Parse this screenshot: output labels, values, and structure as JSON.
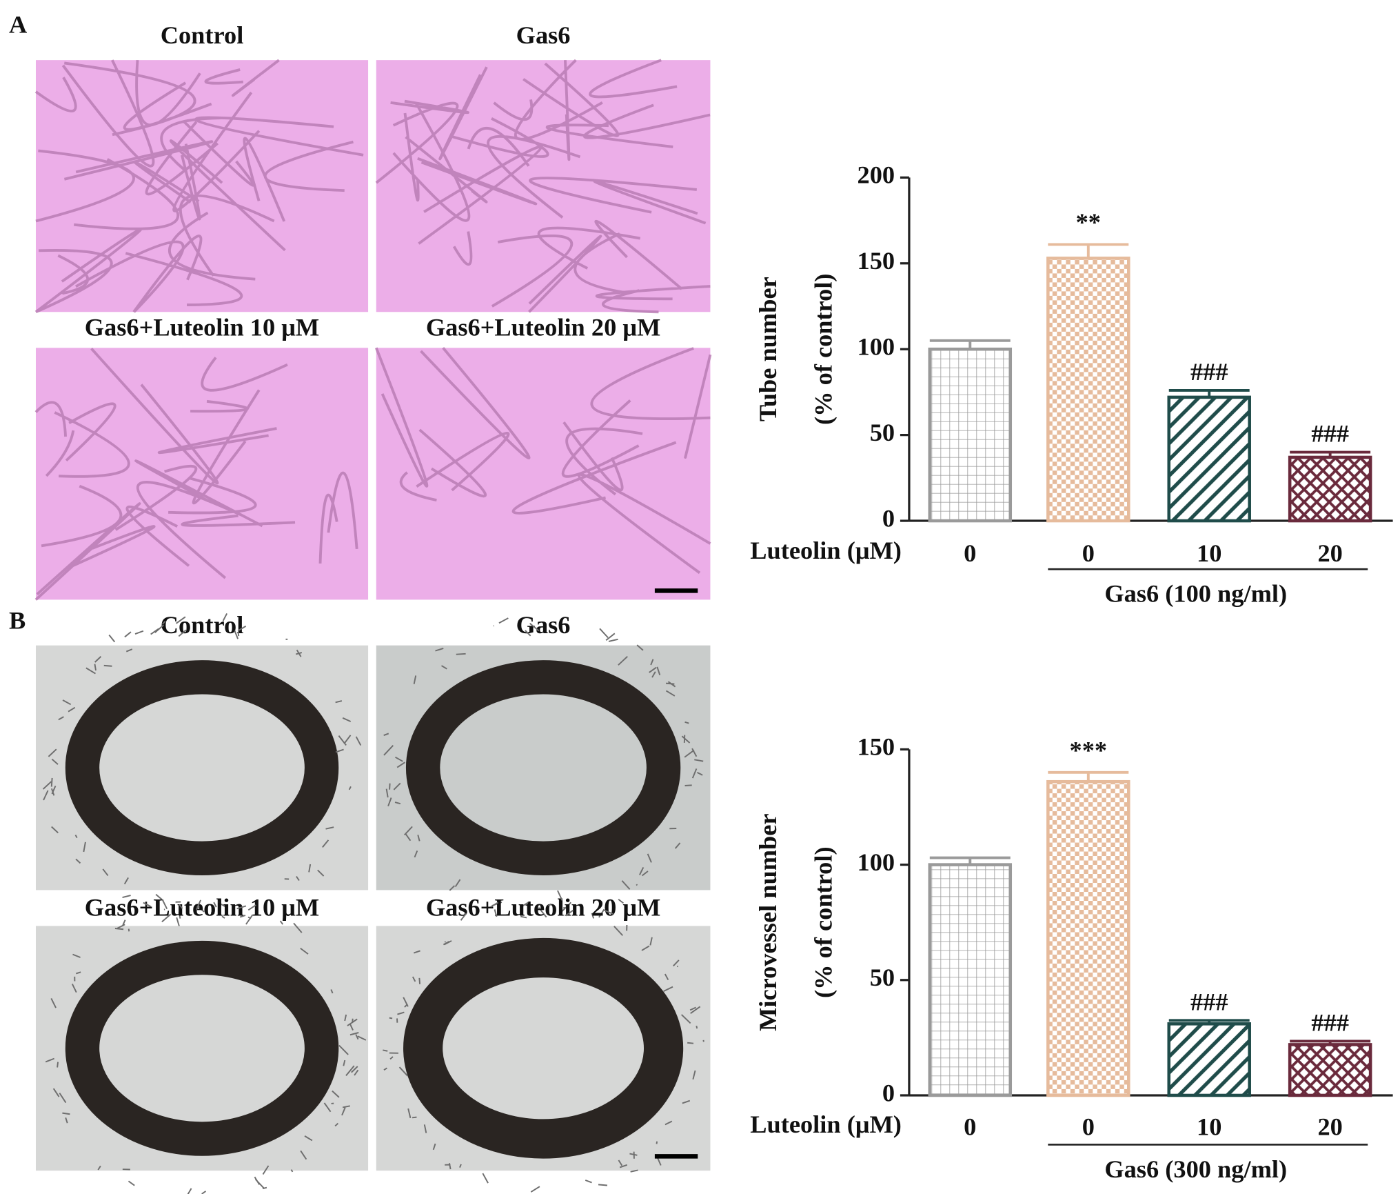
{
  "panels": [
    {
      "label": "A",
      "captions": [
        "Control",
        "Gas6",
        "Gas6+Luteolin 10 μM",
        "Gas6+Luteolin 20 μM"
      ]
    },
    {
      "label": "B",
      "captions": [
        "Control",
        "Gas6",
        "Gas6+Luteolin 10 μM",
        "Gas6+Luteolin 20 μM"
      ]
    }
  ],
  "chart_data": [
    {
      "type": "bar",
      "ylabel": [
        "Tube number",
        "(% of control)"
      ],
      "row_label": "Luteolin (μM)",
      "categories": [
        "0",
        "0",
        "10",
        "20"
      ],
      "group_label": "Gas6 (100 ng/ml)",
      "values": [
        100,
        153,
        72,
        37
      ],
      "errors": [
        5,
        8,
        4,
        3
      ],
      "annotations": [
        null,
        "**",
        "###",
        "###"
      ],
      "colors": [
        "#9a9a9a",
        "#e6bb9c",
        "#1f4c4a",
        "#6a2a3c"
      ],
      "patterns": [
        "grid",
        "checker",
        "diagonal",
        "crosshatch"
      ],
      "ylim": [
        0,
        200
      ],
      "yticks": [
        0,
        50,
        100,
        150,
        200
      ]
    },
    {
      "type": "bar",
      "ylabel": [
        "Microvessel number",
        "(% of control)"
      ],
      "row_label": "Luteolin (μM)",
      "categories": [
        "0",
        "0",
        "10",
        "20"
      ],
      "group_label": "Gas6 (300 ng/ml)",
      "values": [
        100,
        136,
        31,
        22
      ],
      "errors": [
        3,
        4,
        1.5,
        1.5
      ],
      "annotations": [
        null,
        "***",
        "###",
        "###"
      ],
      "colors": [
        "#9a9a9a",
        "#e6bb9c",
        "#1f4c4a",
        "#6a2a3c"
      ],
      "patterns": [
        "grid",
        "checker",
        "diagonal",
        "crosshatch"
      ],
      "ylim": [
        0,
        150
      ],
      "yticks": [
        0,
        50,
        100,
        150
      ]
    }
  ]
}
